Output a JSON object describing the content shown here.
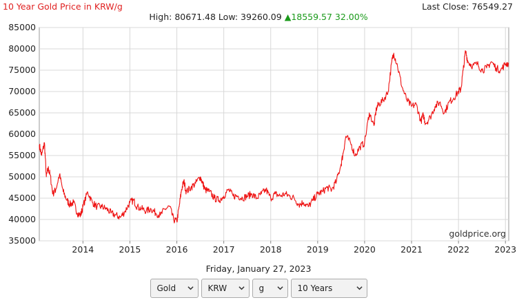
{
  "header": {
    "title": "10 Year Gold Price in KRW/g",
    "last_close": "Last Close: 76549.27",
    "high_low": "High: 80671.48 Low: 39260.09",
    "change": "18559.57 32.00%"
  },
  "footer": {
    "date": "Friday, January 27, 2023",
    "watermark": "goldprice.org"
  },
  "controls": {
    "metal": "Gold",
    "currency": "KRW",
    "unit": "g",
    "period": "10 Years"
  },
  "colors": {
    "line": "#ee1111",
    "title": "#e02020",
    "change_up": "#1a9a1a",
    "grid": "#d8d8d8"
  },
  "chart_data": {
    "type": "line",
    "title": "10 Year Gold Price in KRW/g",
    "xlabel": "",
    "ylabel": "",
    "xlim": [
      2013.07,
      2023.07
    ],
    "ylim": [
      35000,
      85000
    ],
    "x_ticks": [
      "2014",
      "2015",
      "2016",
      "2017",
      "2018",
      "2019",
      "2020",
      "2021",
      "2022",
      "2023"
    ],
    "y_ticks": [
      "35000",
      "40000",
      "45000",
      "50000",
      "55000",
      "60000",
      "65000",
      "70000",
      "75000",
      "80000",
      "85000"
    ],
    "grid": true,
    "series": [
      {
        "x": [
          2013.07,
          2013.12,
          2013.18,
          2013.22,
          2013.26,
          2013.3,
          2013.36,
          2013.42,
          2013.5,
          2013.58,
          2013.66,
          2013.72,
          2013.8,
          2013.88,
          2013.95,
          2014.0,
          2014.1,
          2014.2,
          2014.3,
          2014.4,
          2014.5,
          2014.6,
          2014.7,
          2014.8,
          2014.9,
          2015.0,
          2015.08,
          2015.15,
          2015.25,
          2015.35,
          2015.45,
          2015.55,
          2015.65,
          2015.75,
          2015.85,
          2015.93,
          2016.0,
          2016.05,
          2016.1,
          2016.15,
          2016.2,
          2016.3,
          2016.4,
          2016.5,
          2016.55,
          2016.6,
          2016.7,
          2016.8,
          2016.9,
          2017.0,
          2017.1,
          2017.2,
          2017.3,
          2017.4,
          2017.5,
          2017.6,
          2017.7,
          2017.8,
          2017.9,
          2018.0,
          2018.1,
          2018.2,
          2018.3,
          2018.4,
          2018.5,
          2018.6,
          2018.7,
          2018.8,
          2018.9,
          2019.0,
          2019.1,
          2019.2,
          2019.3,
          2019.4,
          2019.5,
          2019.55,
          2019.6,
          2019.7,
          2019.8,
          2019.9,
          2020.0,
          2020.1,
          2020.2,
          2020.25,
          2020.3,
          2020.4,
          2020.5,
          2020.58,
          2020.62,
          2020.7,
          2020.8,
          2020.9,
          2021.0,
          2021.1,
          2021.2,
          2021.25,
          2021.3,
          2021.4,
          2021.5,
          2021.6,
          2021.7,
          2021.8,
          2021.9,
          2022.0,
          2022.05,
          2022.1,
          2022.15,
          2022.2,
          2022.3,
          2022.4,
          2022.5,
          2022.6,
          2022.7,
          2022.8,
          2022.9,
          2023.0,
          2023.07
        ],
        "y": [
          57500,
          55000,
          58000,
          50000,
          52000,
          50500,
          46000,
          47000,
          50500,
          46500,
          44500,
          43500,
          44000,
          41500,
          41000,
          43000,
          46500,
          44000,
          43000,
          43000,
          42500,
          41500,
          41000,
          40500,
          42000,
          44000,
          44500,
          43000,
          42500,
          42000,
          42500,
          41500,
          41000,
          42500,
          43000,
          40000,
          39500,
          43000,
          47000,
          49000,
          46500,
          47500,
          48500,
          50000,
          48500,
          47000,
          46500,
          45000,
          44500,
          45500,
          47000,
          45500,
          45500,
          45000,
          45500,
          46000,
          45000,
          46000,
          47000,
          45000,
          46000,
          45500,
          46000,
          45500,
          45000,
          43500,
          44000,
          43000,
          44500,
          46000,
          46500,
          47500,
          47000,
          49000,
          53000,
          56000,
          59500,
          58000,
          55000,
          57000,
          58000,
          65000,
          62000,
          66000,
          67000,
          68000,
          70000,
          77000,
          79000,
          76000,
          71000,
          68000,
          66500,
          67000,
          63000,
          64500,
          62500,
          64000,
          66500,
          67500,
          65000,
          67500,
          68500,
          70000,
          70500,
          75000,
          79500,
          77000,
          76000,
          76500,
          75000,
          75500,
          77000,
          75500,
          75000,
          76500,
          76549
        ]
      }
    ]
  }
}
